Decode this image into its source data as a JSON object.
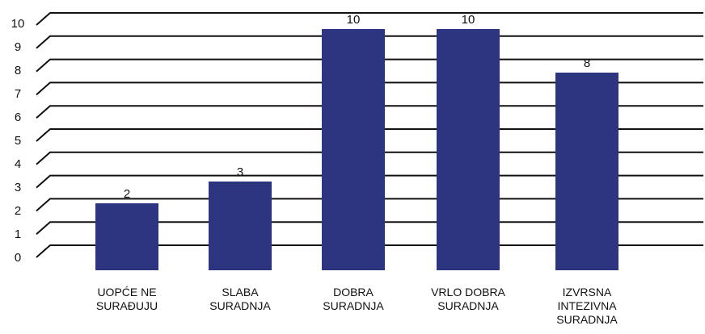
{
  "chart_data": {
    "type": "bar",
    "categories": [
      "UOPĆE NE SURAĐUJU",
      "SLABA SURADNJA",
      "DOBRA SURADNJA",
      "VRLO DOBRA SURADNJA",
      "IZVRSNA INTEZIVNA SURADNJA"
    ],
    "values": [
      2,
      3,
      10,
      10,
      8
    ],
    "color": "#2e3580",
    "ylim": [
      0,
      10
    ],
    "yticks": [
      0,
      1,
      2,
      3,
      4,
      5,
      6,
      7,
      8,
      9,
      10
    ],
    "grid": true
  }
}
